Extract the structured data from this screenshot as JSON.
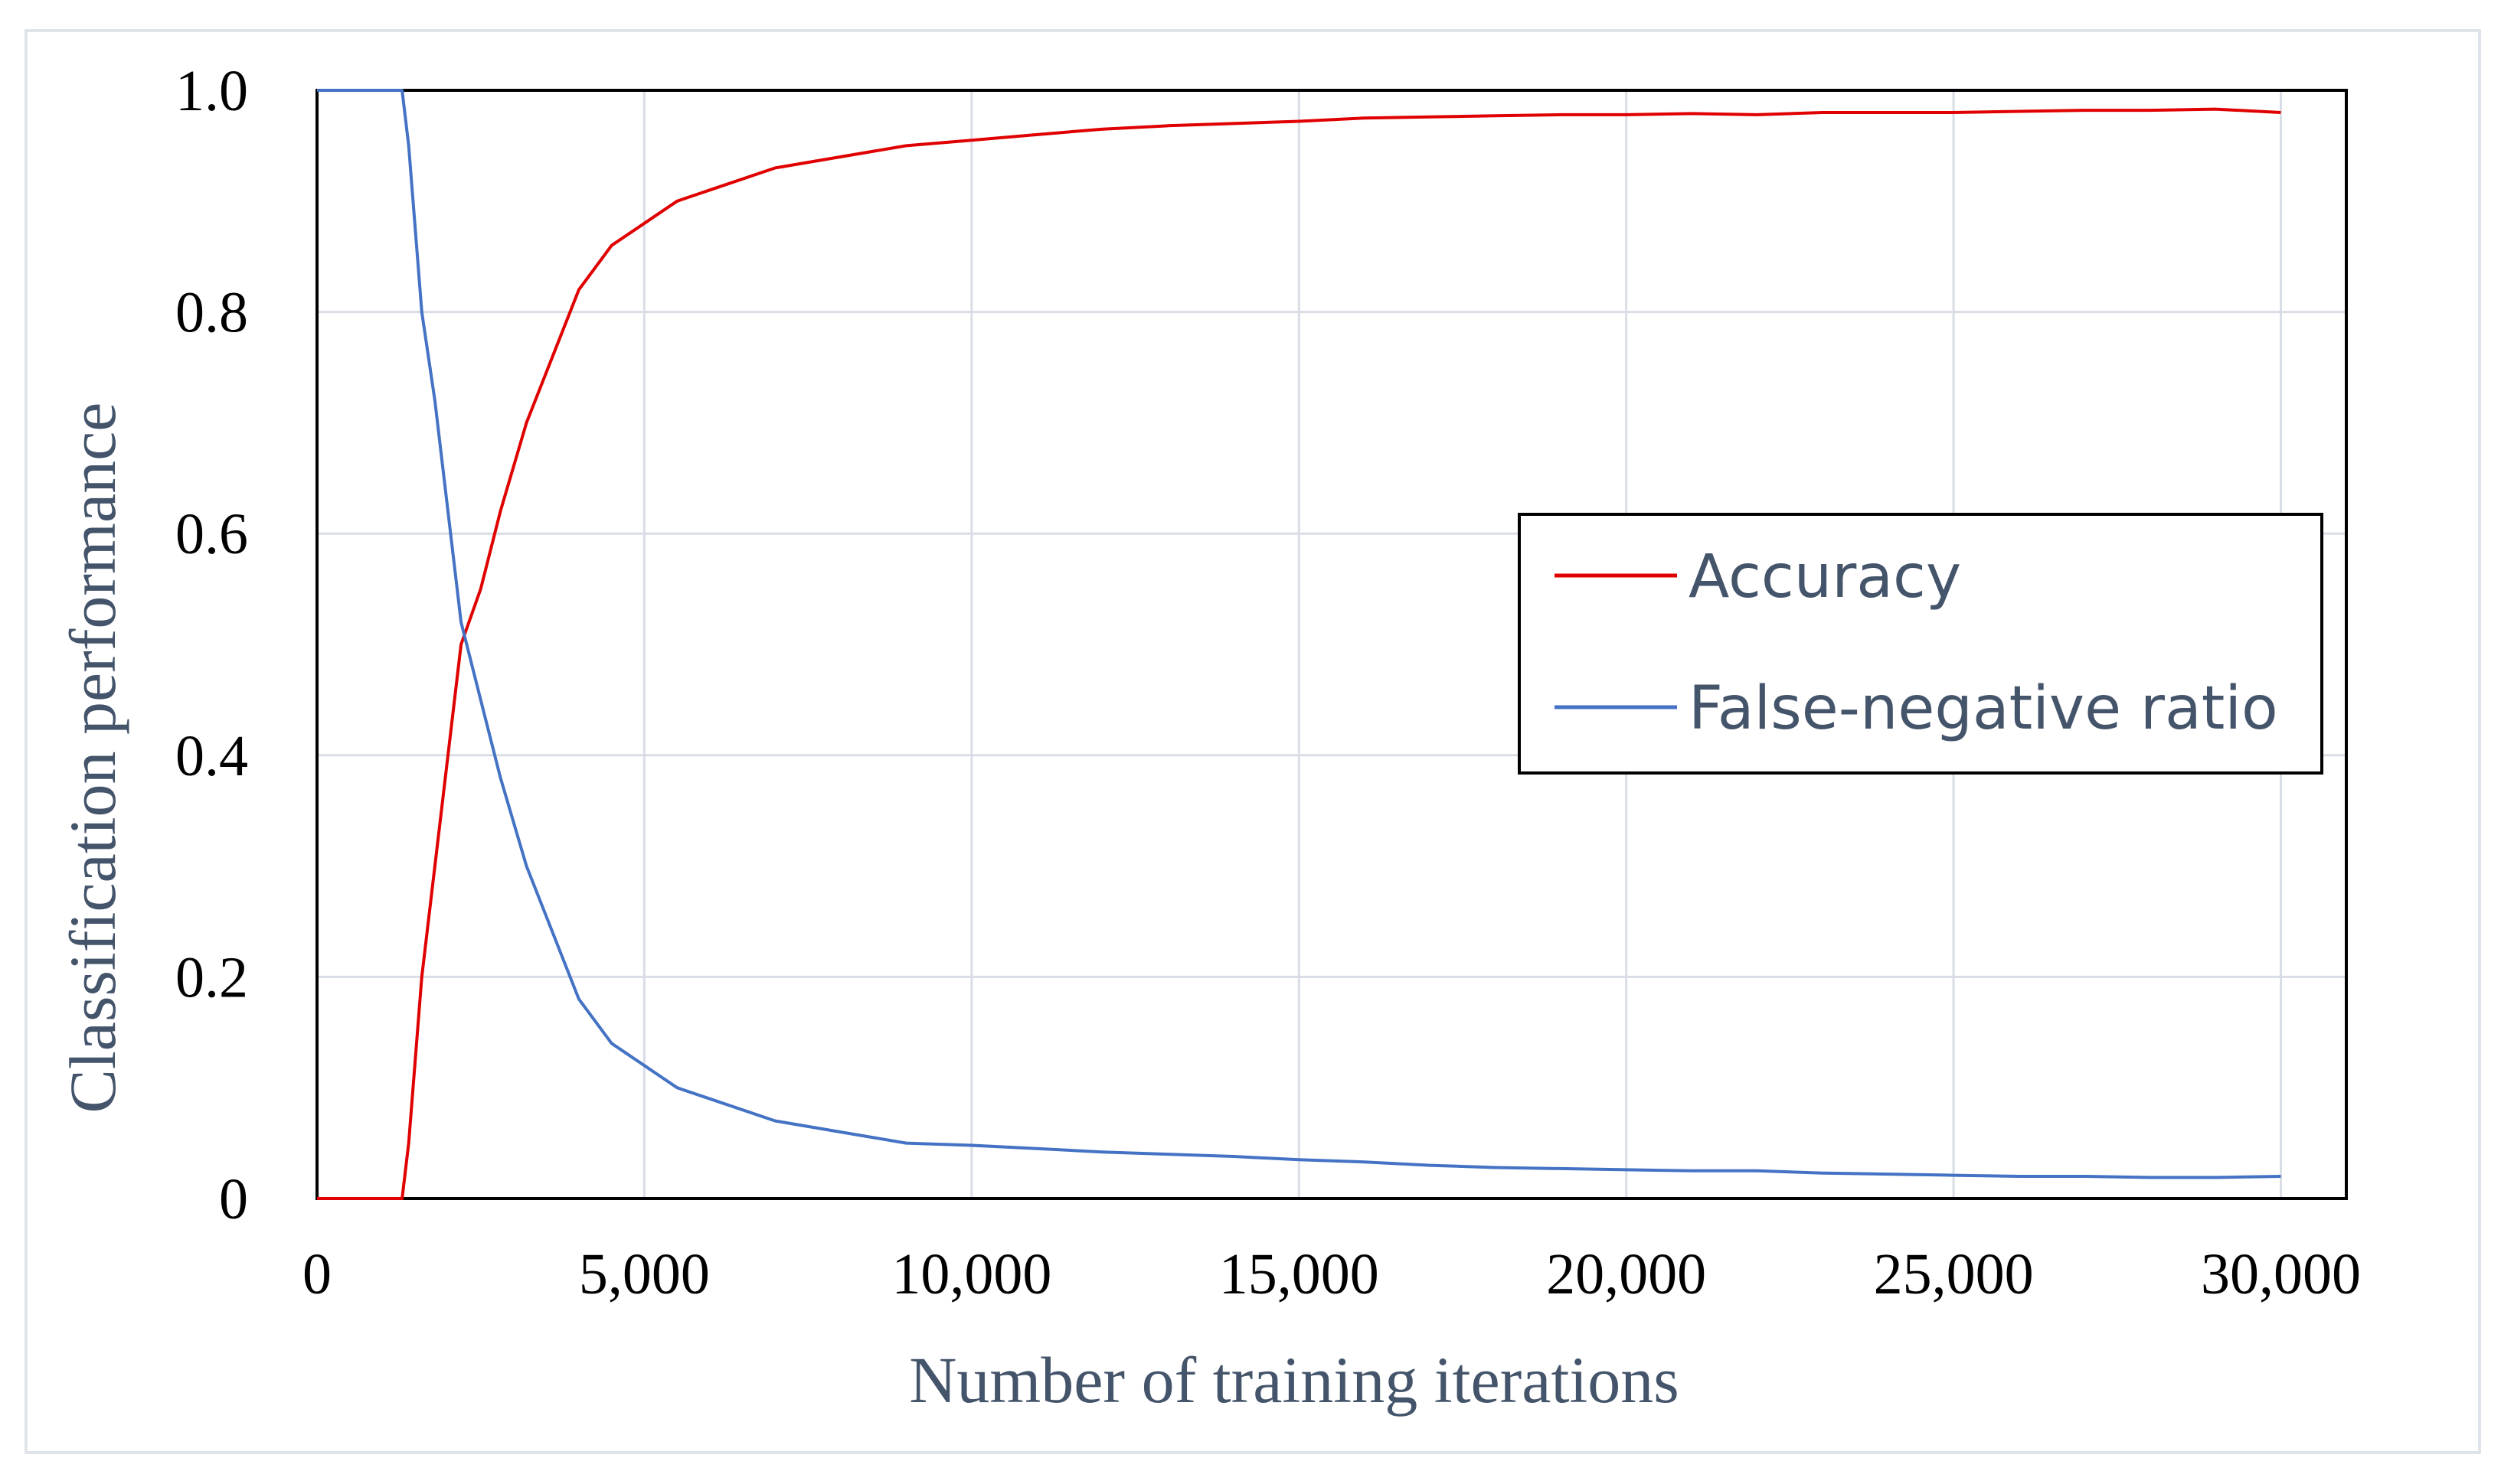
{
  "chart_data": {
    "type": "line",
    "xlabel": "Number of training iterations",
    "ylabel": "Classification performance",
    "xlim": [
      0,
      31000
    ],
    "ylim": [
      0,
      1.0
    ],
    "x_ticks": [
      0,
      5000,
      10000,
      15000,
      20000,
      25000,
      30000
    ],
    "x_tick_labels": [
      "0",
      "5,000",
      "10,000",
      "15,000",
      "20,000",
      "25,000",
      "30,000"
    ],
    "y_ticks": [
      0,
      0.2,
      0.4,
      0.6,
      0.8,
      1.0
    ],
    "y_tick_labels": [
      "0",
      "0.2",
      "0.4",
      "0.6",
      "0.8",
      "1.0"
    ],
    "grid": true,
    "legend_position": "center-right",
    "x": [
      0,
      500,
      1000,
      1300,
      1400,
      1600,
      1800,
      2000,
      2200,
      2500,
      2800,
      3200,
      3600,
      4000,
      4500,
      5000,
      5500,
      6000,
      7000,
      8000,
      9000,
      10000,
      11000,
      12000,
      13000,
      14000,
      15000,
      16000,
      17000,
      18000,
      19000,
      20000,
      21000,
      22000,
      23000,
      24000,
      25000,
      26000,
      27000,
      28000,
      29000,
      30000
    ],
    "series": [
      {
        "name": "Accuracy",
        "color": "#e00000",
        "values": [
          0,
          0,
          0,
          0,
          0.05,
          0.2,
          0.3,
          0.4,
          0.5,
          0.55,
          0.62,
          0.7,
          0.76,
          0.82,
          0.86,
          0.88,
          0.9,
          0.91,
          0.93,
          0.94,
          0.95,
          0.955,
          0.96,
          0.965,
          0.968,
          0.97,
          0.972,
          0.975,
          0.976,
          0.977,
          0.978,
          0.978,
          0.979,
          0.978,
          0.98,
          0.98,
          0.98,
          0.981,
          0.982,
          0.982,
          0.983,
          0.98
        ]
      },
      {
        "name": "False-negative ratio",
        "color": "#4472c4",
        "values": [
          1.0,
          1.0,
          1.0,
          1.0,
          0.95,
          0.8,
          0.72,
          0.62,
          0.52,
          0.45,
          0.38,
          0.3,
          0.24,
          0.18,
          0.14,
          0.12,
          0.1,
          0.09,
          0.07,
          0.06,
          0.05,
          0.048,
          0.045,
          0.042,
          0.04,
          0.038,
          0.035,
          0.033,
          0.03,
          0.028,
          0.027,
          0.026,
          0.025,
          0.025,
          0.023,
          0.022,
          0.021,
          0.02,
          0.02,
          0.019,
          0.019,
          0.02
        ]
      }
    ]
  }
}
